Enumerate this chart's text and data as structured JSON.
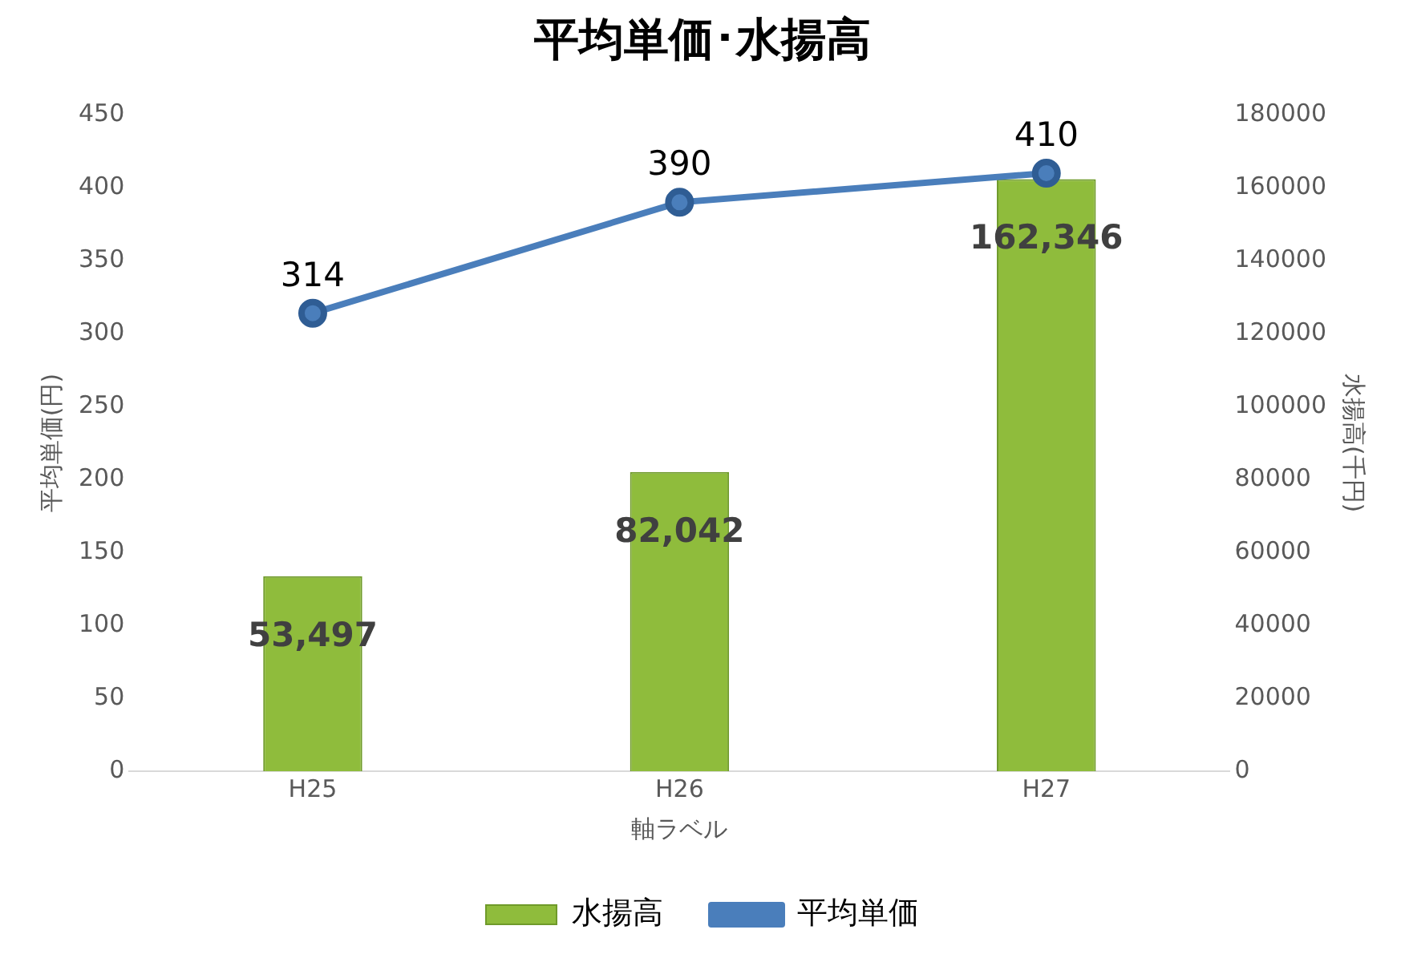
{
  "chart_data": {
    "type": "bar",
    "title": "平均単価･水揚高",
    "xlabel": "軸ラベル",
    "ylabel": "平均単価(円)",
    "y2label": "水揚高(千円)",
    "categories": [
      "H25",
      "H26",
      "H27"
    ],
    "series": [
      {
        "name": "水揚高",
        "axis": "y2",
        "color": "#8fbc3c",
        "values": [
          53497,
          82042,
          162346
        ],
        "value_labels": [
          "53,497",
          "82,042",
          "162,346"
        ]
      },
      {
        "name": "平均単価",
        "type": "line",
        "color": "#4a7ebb",
        "values": [
          314,
          390,
          410
        ],
        "value_labels": [
          "314",
          "390",
          "410"
        ]
      }
    ],
    "ylim": [
      0,
      450
    ],
    "yticks": [
      0,
      50,
      100,
      150,
      200,
      250,
      300,
      350,
      400,
      450
    ],
    "y2lim": [
      0,
      180000
    ],
    "y2ticks": [
      0,
      20000,
      40000,
      60000,
      80000,
      100000,
      120000,
      140000,
      160000,
      180000
    ],
    "grid": false,
    "legend": "bottom",
    "marker": "circle"
  }
}
